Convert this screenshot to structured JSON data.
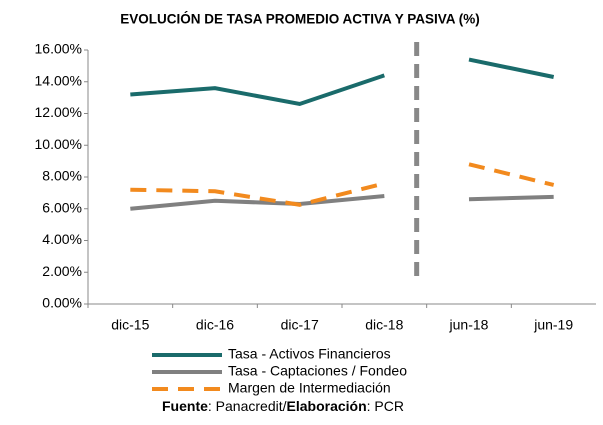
{
  "chart_data": {
    "type": "line",
    "title": "EVOLUCIÓN DE TASA PROMEDIO ACTIVA Y PASIVA (%)",
    "categories": [
      "dic-15",
      "dic-16",
      "dic-17",
      "dic-18",
      "jun-18",
      "jun-19"
    ],
    "series": [
      {
        "name": "Tasa - Activos Financieros",
        "color": "#1a6b6b",
        "dash": false,
        "values": [
          13.2,
          13.6,
          12.6,
          14.4,
          15.4,
          14.3
        ]
      },
      {
        "name": "Tasa - Captaciones / Fondeo",
        "color": "#808080",
        "dash": false,
        "values": [
          6.0,
          6.5,
          6.3,
          6.8,
          6.6,
          6.75
        ]
      },
      {
        "name": "Margen de Intermediación",
        "color": "#f28a1e",
        "dash": true,
        "values": [
          7.2,
          7.1,
          6.25,
          7.6,
          8.8,
          7.5
        ]
      }
    ],
    "ylim": [
      0,
      16
    ],
    "yticks": [
      {
        "value": 0,
        "label": "0.00%"
      },
      {
        "value": 2,
        "label": "2.00%"
      },
      {
        "value": 4,
        "label": "4.00%"
      },
      {
        "value": 6,
        "label": "6.00%"
      },
      {
        "value": 8,
        "label": "8.00%"
      },
      {
        "value": 10,
        "label": "10.00%"
      },
      {
        "value": 12,
        "label": "12.00%"
      },
      {
        "value": 14,
        "label": "14.00%"
      },
      {
        "value": 16,
        "label": "16.00%"
      }
    ],
    "grid": false,
    "footer": [
      {
        "text": "Fuente",
        "bold": true
      },
      {
        "text": ": Panacredit/",
        "bold": false
      },
      {
        "text": "Elaboración",
        "bold": true
      },
      {
        "text": ": PCR",
        "bold": false
      }
    ]
  }
}
